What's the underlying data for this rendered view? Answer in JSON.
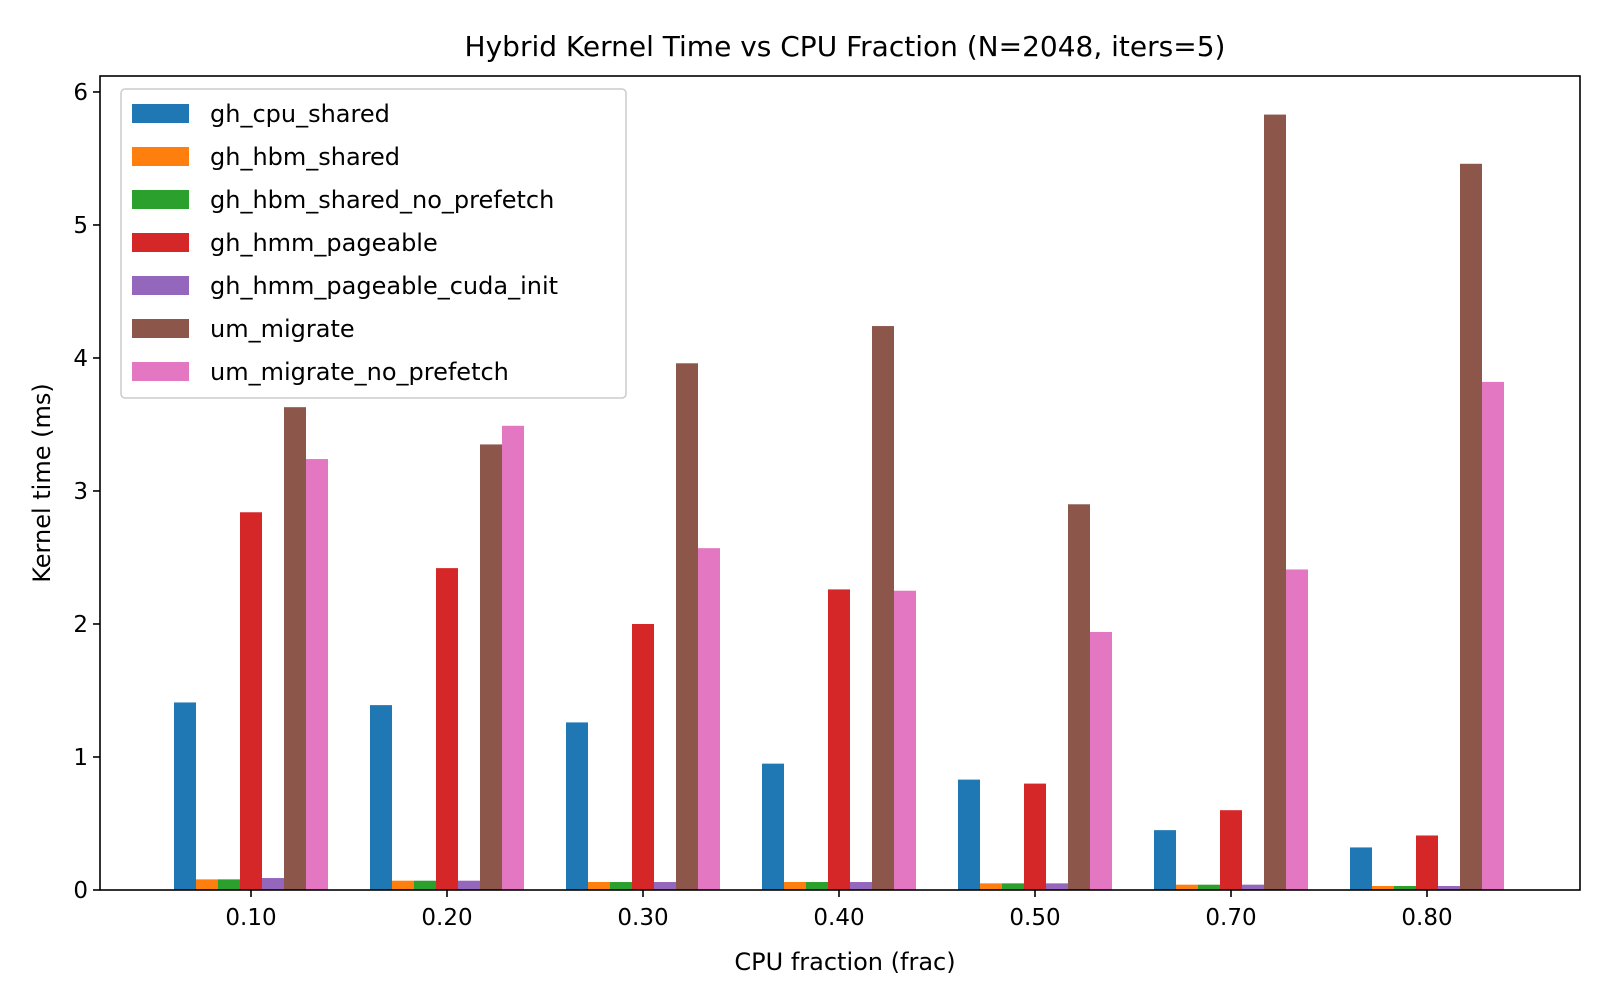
{
  "chart_data": {
    "type": "bar",
    "title": "Hybrid Kernel Time vs CPU Fraction (N=2048, iters=5)",
    "xlabel": "CPU fraction (frac)",
    "ylabel": "Kernel time (ms)",
    "categories": [
      "0.10",
      "0.20",
      "0.30",
      "0.40",
      "0.50",
      "0.70",
      "0.80"
    ],
    "ylim": [
      0,
      6.12
    ],
    "yticks": [
      "0",
      "1",
      "2",
      "3",
      "4",
      "5",
      "6"
    ],
    "grid": false,
    "legend_position": "top-left",
    "series": [
      {
        "name": "gh_cpu_shared",
        "color": "#1f77b4",
        "values": [
          1.41,
          1.39,
          1.26,
          0.95,
          0.83,
          0.45,
          0.32
        ]
      },
      {
        "name": "gh_hbm_shared",
        "color": "#ff7f0e",
        "values": [
          0.08,
          0.07,
          0.06,
          0.06,
          0.05,
          0.04,
          0.03
        ]
      },
      {
        "name": "gh_hbm_shared_no_prefetch",
        "color": "#2ca02c",
        "values": [
          0.08,
          0.07,
          0.06,
          0.06,
          0.05,
          0.04,
          0.03
        ]
      },
      {
        "name": "gh_hmm_pageable",
        "color": "#d62728",
        "values": [
          2.84,
          2.42,
          2.0,
          2.26,
          0.8,
          0.6,
          0.41
        ]
      },
      {
        "name": "gh_hmm_pageable_cuda_init",
        "color": "#9467bd",
        "values": [
          0.09,
          0.07,
          0.06,
          0.06,
          0.05,
          0.04,
          0.03
        ]
      },
      {
        "name": "um_migrate",
        "color": "#8c564b",
        "values": [
          3.63,
          3.35,
          3.96,
          4.24,
          2.9,
          5.83,
          5.46
        ]
      },
      {
        "name": "um_migrate_no_prefetch",
        "color": "#e377c2",
        "values": [
          3.24,
          3.49,
          2.57,
          2.25,
          1.94,
          2.41,
          3.82
        ]
      }
    ]
  }
}
